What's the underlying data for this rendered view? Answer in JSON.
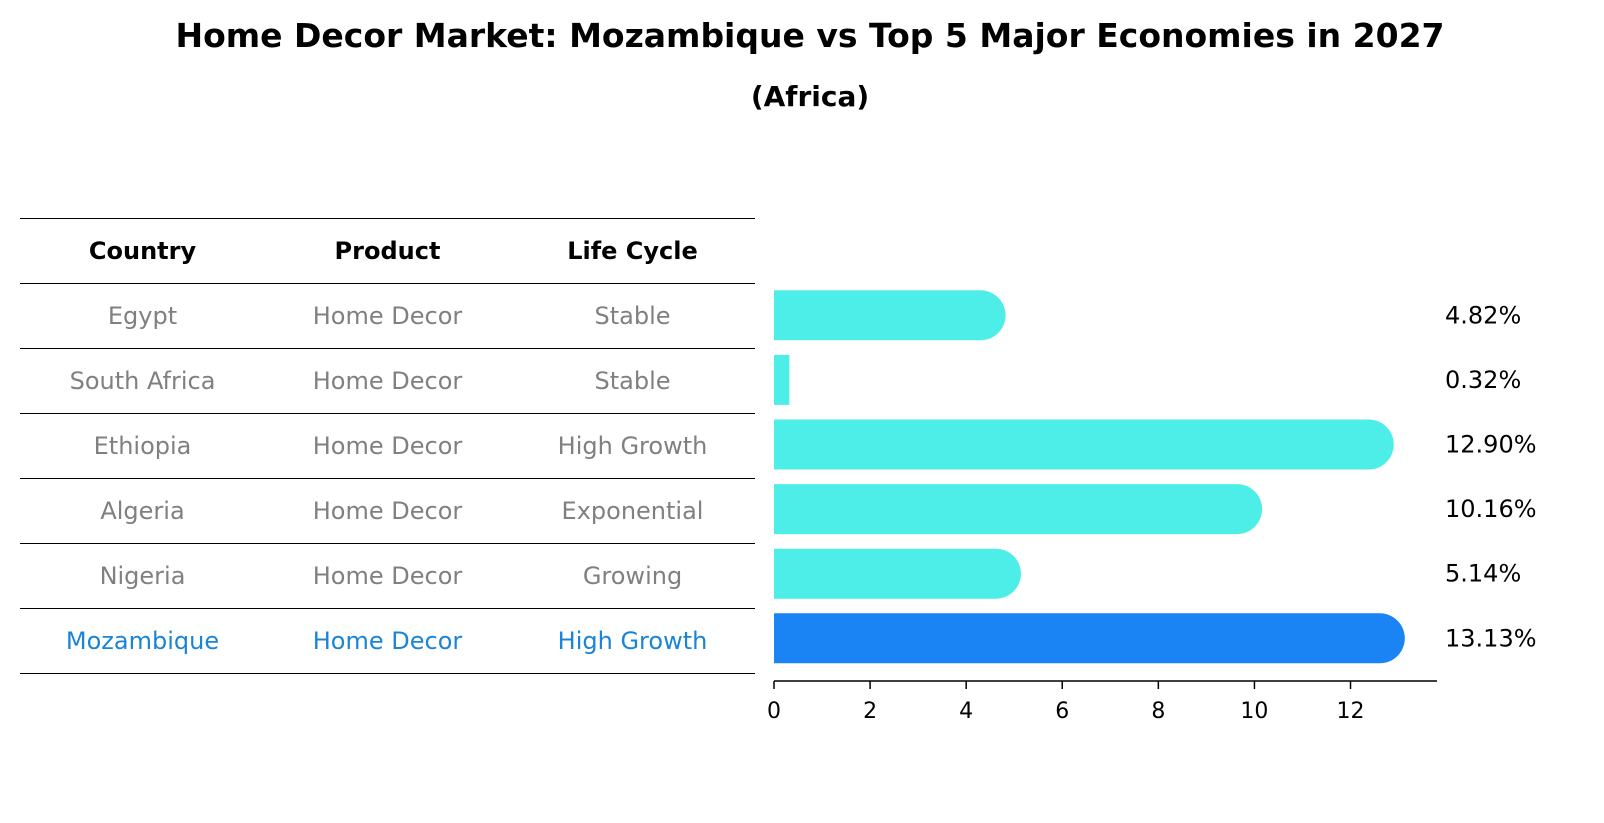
{
  "title": "Home Decor Market: Mozambique vs Top 5 Major Economies in 2027",
  "subtitle": "(Africa)",
  "table": {
    "headers": [
      "Country",
      "Product",
      "Life Cycle"
    ],
    "rows": [
      {
        "country": "Egypt",
        "product": "Home Decor",
        "life_cycle": "Stable"
      },
      {
        "country": "South Africa",
        "product": "Home Decor",
        "life_cycle": "Stable"
      },
      {
        "country": "Ethiopia",
        "product": "Home Decor",
        "life_cycle": "High Growth"
      },
      {
        "country": "Algeria",
        "product": "Home Decor",
        "life_cycle": "Exponential"
      },
      {
        "country": "Nigeria",
        "product": "Home Decor",
        "life_cycle": "Growing"
      },
      {
        "country": "Mozambique",
        "product": "Home Decor",
        "life_cycle": "High Growth"
      }
    ]
  },
  "chart_data": {
    "type": "bar",
    "orientation": "horizontal",
    "categories": [
      "Egypt",
      "South Africa",
      "Ethiopia",
      "Algeria",
      "Nigeria",
      "Mozambique"
    ],
    "values": [
      4.82,
      0.32,
      12.9,
      10.16,
      5.14,
      13.13
    ],
    "value_labels": [
      "4.82%",
      "0.32%",
      "12.90%",
      "10.16%",
      "5.14%",
      "13.13%"
    ],
    "xlim": [
      0,
      13.8
    ],
    "xticks": [
      0,
      2,
      4,
      6,
      8,
      10,
      12
    ],
    "highlight": "Mozambique",
    "grid": false,
    "colors": {
      "bar": "#4deee8",
      "highlight": "#1a84f5",
      "highlight_text": "#1a84d6",
      "muted_text": "#808080"
    }
  }
}
